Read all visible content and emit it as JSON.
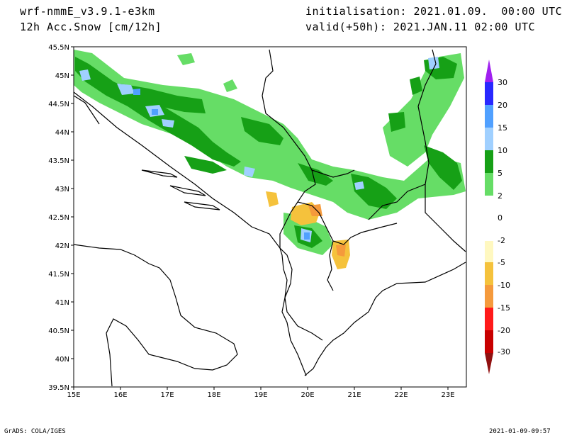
{
  "header": {
    "model": "wrf-nmmE_v3.9.1-e3km",
    "variable": "12h Acc.Snow [cm/12h]",
    "initialisation": "initialisation: 2021.01.09.  00:00 UTC",
    "valid": "valid(+50h): 2021.JAN.11 02:00 UTC"
  },
  "map": {
    "lat_labels": [
      "45.5N",
      "45N",
      "44.5N",
      "44N",
      "43.5N",
      "43N",
      "42.5N",
      "42N",
      "41.5N",
      "41N",
      "40.5N",
      "40N",
      "39.5N"
    ],
    "lon_labels": [
      "15E",
      "16E",
      "17E",
      "18E",
      "19E",
      "20E",
      "21E",
      "22E",
      "23E"
    ],
    "lat_range": [
      39.5,
      45.5
    ],
    "lon_range": [
      15,
      23.4
    ]
  },
  "legend": {
    "labels": [
      "30",
      "20",
      "15",
      "10",
      "5",
      "2",
      "0",
      "-2",
      "-5",
      "-10",
      "-15",
      "-20",
      "-30"
    ],
    "colors": [
      "#a020f0",
      "#2828ff",
      "#50a0ff",
      "#a0d0ff",
      "#16a016",
      "#66dd66",
      "#ffffff",
      "#fff8c0",
      "#f5c23c",
      "#f59a3c",
      "#ff1a1a",
      "#c80000",
      "#901010"
    ]
  },
  "footer": {
    "left": "GrADS: COLA/IGES",
    "right": "2021-01-09-09:57"
  }
}
